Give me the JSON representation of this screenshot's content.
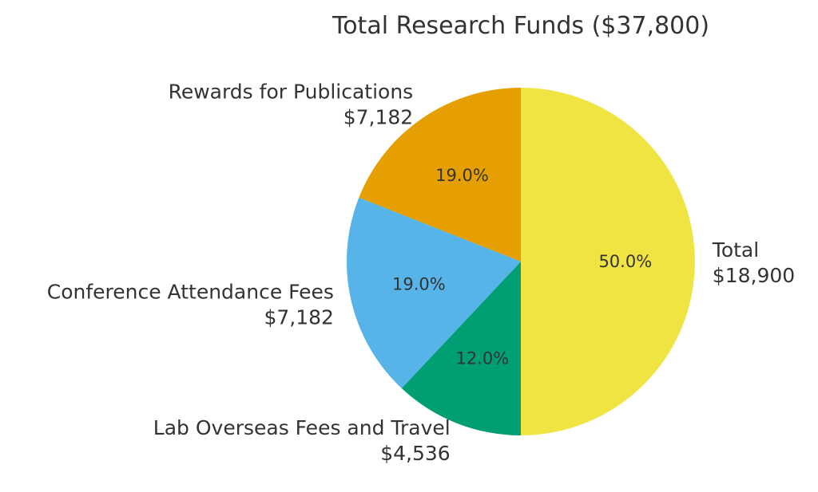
{
  "chart_data": {
    "type": "pie",
    "title": "Total Research Funds ($37,800)",
    "start": "top",
    "direction": "clockwise",
    "slices": [
      {
        "label": "Total",
        "amount": "$18,900",
        "value": 18900,
        "percent": "50.0%",
        "color": "#F0E442"
      },
      {
        "label": "Lab Overseas Fees and Travel",
        "amount": "$4,536",
        "value": 4536,
        "percent": "12.0%",
        "color": "#009E73"
      },
      {
        "label": "Conference Attendance Fees",
        "amount": "$7,182",
        "value": 7182,
        "percent": "19.0%",
        "color": "#56B4E9"
      },
      {
        "label": "Rewards for Publications",
        "amount": "$7,182",
        "value": 7182,
        "percent": "19.0%",
        "color": "#E69F00"
      }
    ]
  }
}
